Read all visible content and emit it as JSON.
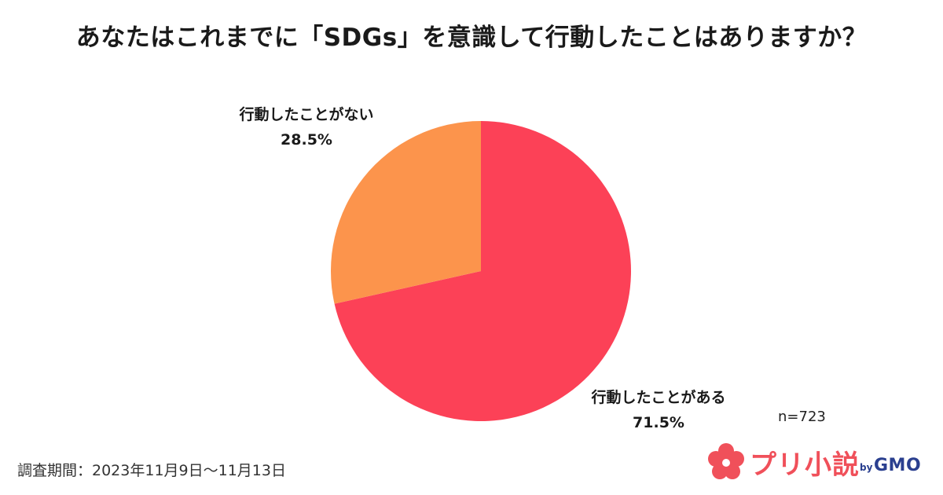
{
  "title": "あなたはこれまでに「SDGs」を意識して行動したことはありますか？",
  "chart_data": {
    "type": "pie",
    "slices": [
      {
        "label": "行動したことがある",
        "value": 71.5,
        "value_label": "71.5%",
        "color": "#fc4157"
      },
      {
        "label": "行動したことがない",
        "value": 28.5,
        "value_label": "28.5%",
        "color": "#fc944c"
      }
    ],
    "start": "top",
    "direction": "clockwise"
  },
  "sample_size": "n=723",
  "survey_period": "調査期間：2023年11月9日〜11月13日",
  "logo": {
    "name": "プリ小説",
    "by": "by",
    "brand": "GMO",
    "accent": "#f0505a",
    "brand_color": "#2a3f8f"
  }
}
